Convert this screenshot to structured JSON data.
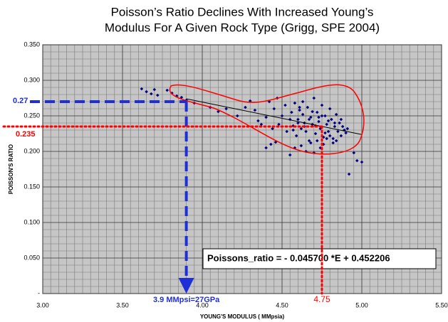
{
  "chart_data": {
    "type": "scatter",
    "title": [
      "Poisson’s Ratio Declines With Increased Young’s",
      "Modulus For A Given Rock Type (Grigg, SPE 2004)"
    ],
    "x_label": "YOUNG'S MODULUS ( MMpsia)",
    "y_label": "POISSON'S RATIO",
    "color": "#000080",
    "grid": true,
    "minor_grid": true,
    "xlim": [
      3.0,
      5.5
    ],
    "ylim": [
      0,
      0.35
    ],
    "xticks": [
      {
        "value": 3.0,
        "label": "3.00"
      },
      {
        "value": 3.5,
        "label": "3.50"
      },
      {
        "value": 4.0,
        "label": "4.00"
      },
      {
        "value": 4.5,
        "label": "4.50"
      },
      {
        "value": 5.0,
        "label": "5.00"
      },
      {
        "value": 5.5,
        "label": "5.50"
      }
    ],
    "yticks": [
      {
        "value": 0,
        "label": "-"
      },
      {
        "value": 0.05,
        "label": "0.050"
      },
      {
        "value": 0.1,
        "label": "0.100"
      },
      {
        "value": 0.15,
        "label": "0.150"
      },
      {
        "value": 0.2,
        "label": "0.200"
      },
      {
        "value": 0.25,
        "label": "0.250"
      },
      {
        "value": 0.3,
        "label": "0.300"
      },
      {
        "value": 0.35,
        "label": "0.350"
      }
    ],
    "x": [
      3.62,
      3.65,
      3.68,
      3.7,
      3.72,
      3.78,
      3.81,
      3.84,
      3.87,
      3.9,
      3.95,
      4.05,
      4.1,
      4.15,
      4.22,
      4.27,
      4.3,
      4.33,
      4.35,
      4.37,
      4.4,
      4.42,
      4.44,
      4.45,
      4.47,
      4.48,
      4.5,
      4.52,
      4.53,
      4.55,
      4.56,
      4.57,
      4.58,
      4.59,
      4.6,
      4.61,
      4.62,
      4.63,
      4.64,
      4.65,
      4.66,
      4.67,
      4.68,
      4.69,
      4.7,
      4.71,
      4.72,
      4.73,
      4.74,
      4.75,
      4.76,
      4.77,
      4.78,
      4.79,
      4.8,
      4.81,
      4.82,
      4.83,
      4.84,
      4.85,
      4.86,
      4.87,
      4.88,
      4.89,
      4.9,
      4.92,
      4.95,
      4.97,
      5.0,
      4.4,
      4.43,
      4.46,
      4.55,
      4.58,
      4.62,
      4.65,
      4.68,
      4.7,
      4.72,
      4.74,
      4.76,
      4.78,
      4.8,
      4.82,
      4.84,
      4.6,
      4.63,
      4.67,
      4.71,
      4.75,
      4.79,
      4.83,
      4.87,
      4.91,
      4.57,
      4.61,
      4.64,
      4.69,
      4.73,
      4.77
    ],
    "values": [
      0.288,
      0.284,
      0.281,
      0.287,
      0.279,
      0.286,
      0.282,
      0.278,
      0.276,
      0.272,
      0.268,
      0.262,
      0.256,
      0.26,
      0.25,
      0.262,
      0.271,
      0.258,
      0.243,
      0.238,
      0.248,
      0.27,
      0.232,
      0.26,
      0.275,
      0.238,
      0.25,
      0.265,
      0.228,
      0.245,
      0.255,
      0.236,
      0.268,
      0.222,
      0.245,
      0.258,
      0.232,
      0.27,
      0.24,
      0.228,
      0.262,
      0.215,
      0.248,
      0.238,
      0.275,
      0.225,
      0.255,
      0.242,
      0.232,
      0.265,
      0.22,
      0.25,
      0.238,
      0.228,
      0.26,
      0.245,
      0.218,
      0.235,
      0.252,
      0.228,
      0.24,
      0.222,
      0.235,
      0.23,
      0.226,
      0.168,
      0.198,
      0.187,
      0.185,
      0.205,
      0.21,
      0.213,
      0.195,
      0.205,
      0.208,
      0.2,
      0.212,
      0.198,
      0.215,
      0.205,
      0.21,
      0.218,
      0.222,
      0.212,
      0.215,
      0.24,
      0.252,
      0.245,
      0.236,
      0.25,
      0.243,
      0.24,
      0.245,
      0.232,
      0.23,
      0.262,
      0.235,
      0.256,
      0.248,
      0.226
    ],
    "trendline": {
      "slope": -0.0457,
      "intercept": 0.452206,
      "x": [
        3.9,
        5.0
      ],
      "label": "Poissons_ratio = - 0.045700 *E + 0.452206"
    },
    "guides": [
      {
        "color": "#1f2fd6",
        "style": "dashed",
        "x": 3.9,
        "y": 0.27,
        "y_label": "0.27",
        "x_label": "3.9 MMpsi=27GPa"
      },
      {
        "color": "#ff0000",
        "style": "dotted",
        "x": 4.75,
        "y": 0.235,
        "y_label": "0.235",
        "x_label": "4.75"
      }
    ]
  }
}
